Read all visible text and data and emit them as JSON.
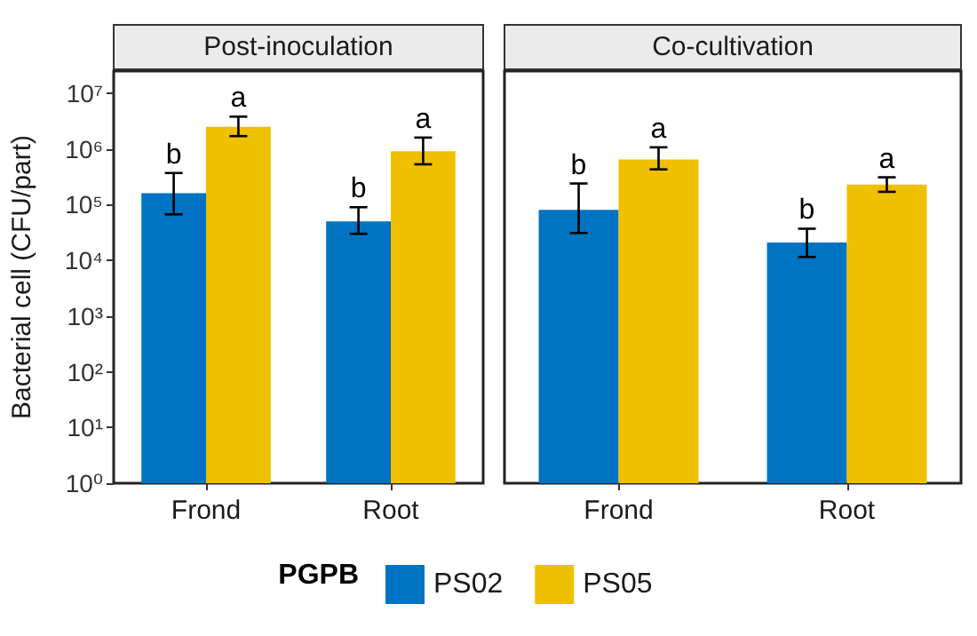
{
  "chart_data": [
    {
      "type": "bar",
      "title": "Post-inoculation",
      "ylabel": "Bacterial cell (CFU/part)",
      "legend_title": "PGPB",
      "legend": "bottom",
      "log": true,
      "grid": false,
      "categories": [
        "Frond",
        "Root"
      ],
      "ylim": [
        1,
        25000000
      ],
      "yticks": [
        {
          "value": 1,
          "label": "10⁰"
        },
        {
          "value": 10,
          "label": "10¹"
        },
        {
          "value": 100,
          "label": "10²"
        },
        {
          "value": 1000,
          "label": "10³"
        },
        {
          "value": 10000,
          "label": "10⁴"
        },
        {
          "value": 100000,
          "label": "10⁵"
        },
        {
          "value": 1000000,
          "label": "10⁶"
        },
        {
          "value": 10000000,
          "label": "10⁷"
        }
      ],
      "series": [
        {
          "name": "PS02",
          "color": "#0073c2",
          "values": [
            160000,
            50000
          ],
          "errors": [
            [
              67000,
              370000
            ],
            [
              30000,
              90000
            ]
          ],
          "value_labels": [
            "b",
            "b"
          ]
        },
        {
          "name": "PS05",
          "color": "#efc000",
          "values": [
            2500000,
            910000
          ],
          "errors": [
            [
              1700000,
              3800000
            ],
            [
              530000,
              1600000
            ]
          ],
          "value_labels": [
            "a",
            "a"
          ]
        }
      ]
    },
    {
      "type": "bar",
      "title": "Co-cultivation",
      "log": true,
      "grid": false,
      "tick_labels": "x",
      "categories": [
        "Frond",
        "Root"
      ],
      "ylim": [
        1,
        25000000
      ],
      "series": [
        {
          "name": "PS02",
          "color": "#0073c2",
          "values": [
            81000,
            21000
          ],
          "errors": [
            [
              31000,
              240000
            ],
            [
              11500,
              37000
            ]
          ],
          "value_labels": [
            "b",
            "b"
          ]
        },
        {
          "name": "PS05",
          "color": "#efc000",
          "values": [
            650000,
            230000
          ],
          "errors": [
            [
              430000,
              1070000
            ],
            [
              170000,
              310000
            ]
          ],
          "value_labels": [
            "a",
            "a"
          ]
        }
      ]
    }
  ]
}
